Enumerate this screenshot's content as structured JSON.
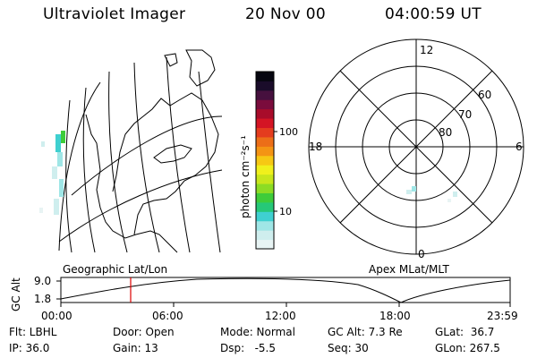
{
  "header": {
    "instrument": "Ultraviolet Imager",
    "date": "20 Nov 00",
    "time": "04:00:59 UT"
  },
  "left_panel": {
    "caption": "Geographic Lat/Lon"
  },
  "right_panel": {
    "caption": "Apex MLat/MLT",
    "mlt_labels": {
      "top": "12",
      "left": "18",
      "right": "6",
      "bottom": "0"
    },
    "mlat_labels": [
      "60",
      "70",
      "80"
    ]
  },
  "colorbar": {
    "label": "photon cm⁻²s⁻¹",
    "ticks": [
      "100",
      "10"
    ],
    "colors": [
      "#e8f4f4",
      "#cfeeee",
      "#9fe6e6",
      "#3fd0d0",
      "#26c878",
      "#3ecc3a",
      "#8cdc24",
      "#c8e61c",
      "#f0f01c",
      "#f6c814",
      "#f49414",
      "#ec6e18",
      "#e43c1e",
      "#d41424",
      "#a80c2a",
      "#7a0c3c",
      "#46103e",
      "#1a0c2a",
      "#060610"
    ]
  },
  "altitude_plot": {
    "ylabel": "GC Alt",
    "yticks": [
      "9.0",
      "1.8"
    ],
    "xticks": [
      "00:00",
      "06:00",
      "12:00",
      "18:00",
      "23:59"
    ],
    "current_time_marker": "04:00"
  },
  "footer": {
    "flt": "Flt: LBHL",
    "ip": "IP: 36.0",
    "door": "Door: Open",
    "gain": "Gain: 13",
    "mode": "Mode: Normal",
    "dsp": "Dsp:   -5.5",
    "gcalt": "GC Alt: 7.3 Re",
    "seq": "Seq: 30",
    "glat": "GLat:  36.7",
    "glon": "GLon: 267.5"
  }
}
